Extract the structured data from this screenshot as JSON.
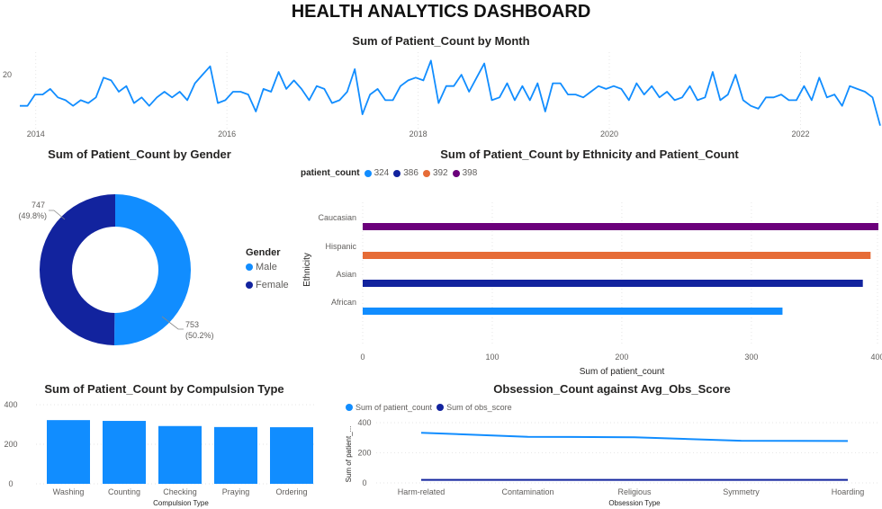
{
  "dashboard_title": "HEALTH ANALYTICS DASHBOARD",
  "colors": {
    "light_blue": "#118dff",
    "dark_blue": "#12239e",
    "orange": "#e66c37",
    "purple": "#6b007b"
  },
  "chart_data": [
    {
      "id": "month",
      "type": "line",
      "title": "Sum of Patient_Count by Month",
      "x_start": "2013-11",
      "x_end": "2022-11",
      "x_ticks": [
        "2014",
        "2016",
        "2018",
        "2020",
        "2022"
      ],
      "y_ticks": [
        "20"
      ],
      "ylim": [
        0,
        28
      ],
      "values": [
        9,
        9,
        13,
        13,
        15,
        12,
        11,
        9,
        11,
        10,
        12,
        19,
        18,
        14,
        16,
        10,
        12,
        9,
        12,
        14,
        12,
        14,
        11,
        17,
        20,
        23,
        10,
        11,
        14,
        14,
        13,
        7,
        15,
        14,
        21,
        15,
        18,
        15,
        11,
        16,
        15,
        10,
        11,
        14,
        22,
        6,
        13,
        15,
        11,
        11,
        16,
        18,
        19,
        18,
        25,
        10,
        16,
        16,
        20,
        14,
        19,
        24,
        11,
        12,
        17,
        11,
        16,
        11,
        17,
        7,
        17,
        17,
        13,
        13,
        12,
        14,
        16,
        15,
        16,
        15,
        11,
        17,
        13,
        16,
        12,
        14,
        11,
        12,
        16,
        11,
        12,
        21,
        11,
        13,
        20,
        11,
        9,
        8,
        12,
        12,
        13,
        11,
        11,
        16,
        11,
        19,
        12,
        13,
        9,
        16,
        15,
        14,
        12,
        2
      ]
    },
    {
      "id": "gender",
      "type": "pie",
      "title": "Sum of Patient_Count by Gender",
      "legend_title": "Gender",
      "slices": [
        {
          "name": "Male",
          "value": 753,
          "label": "753",
          "pct": "(50.2%)"
        },
        {
          "name": "Female",
          "value": 747,
          "label": "747",
          "pct": "(49.8%)"
        }
      ]
    },
    {
      "id": "ethnicity",
      "type": "bar",
      "orientation": "horizontal",
      "title": "Sum of Patient_Count by Ethnicity and Patient_Count",
      "legend_title": "patient_count",
      "legend": [
        "324",
        "386",
        "392",
        "398"
      ],
      "categories": [
        "Caucasian",
        "Hispanic",
        "Asian",
        "African"
      ],
      "values": [
        398,
        392,
        386,
        324
      ],
      "xlim": [
        0,
        400
      ],
      "x_ticks": [
        "0",
        "100",
        "200",
        "300",
        "400"
      ],
      "xlabel": "Sum of patient_count",
      "ylabel": "Ethnicity"
    },
    {
      "id": "compulsion",
      "type": "bar",
      "title": "Sum of Patient_Count by Compulsion Type",
      "categories": [
        "Washing",
        "Counting",
        "Checking",
        "Praying",
        "Ordering"
      ],
      "values": [
        322,
        318,
        292,
        287,
        286
      ],
      "ylim": [
        0,
        400
      ],
      "y_ticks": [
        "0",
        "200",
        "400"
      ],
      "xlabel": "Compulsion Type"
    },
    {
      "id": "obsession",
      "type": "line",
      "title": "Obsession_Count against Avg_Obs_Score",
      "categories": [
        "Harm-related",
        "Contamination",
        "Religious",
        "Symmetry",
        "Hoarding"
      ],
      "series": [
        {
          "name": "Sum of patient_count",
          "values": [
            333,
            306,
            303,
            280,
            278
          ]
        },
        {
          "name": "Sum of obs_score",
          "values": [
            20,
            20,
            20,
            20,
            20
          ]
        }
      ],
      "ylim": [
        0,
        400
      ],
      "y_ticks": [
        "0",
        "200",
        "400"
      ],
      "xlabel": "Obsession Type",
      "ylabel": "Sum of patient_..."
    }
  ]
}
